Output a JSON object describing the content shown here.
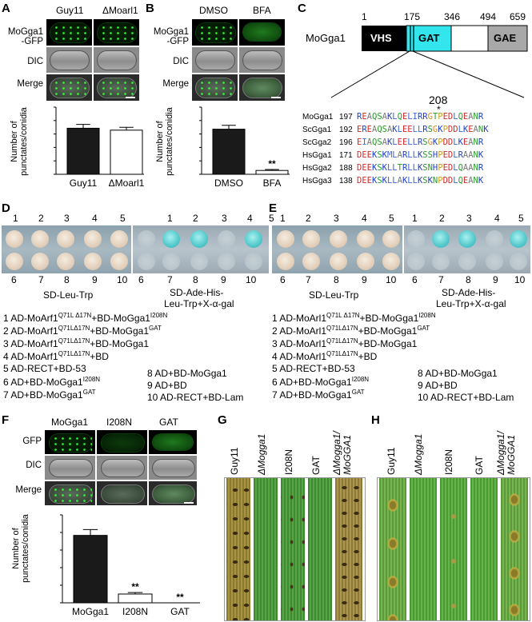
{
  "panels": {
    "A": {
      "label": "A",
      "cols": [
        "Guy11",
        "ΔMoarl1"
      ],
      "rows": [
        "MoGga1\n-GFP",
        "DIC",
        "Merge"
      ],
      "row_label_1": "MoGga1",
      "row_label_1b": "-GFP",
      "row_label_2": "DIC",
      "row_label_3": "Merge",
      "ylabel_1": "Number of",
      "ylabel_2": "punctates/conidia"
    },
    "B": {
      "label": "B",
      "cols": [
        "DMSO",
        "BFA"
      ],
      "row_label_1": "MoGga1",
      "row_label_1b": "-GFP",
      "row_label_2": "DIC",
      "row_label_3": "Merge",
      "ylabel_1": "Number of",
      "ylabel_2": "punctates/conidia",
      "annotation": "**"
    },
    "C": {
      "label": "C",
      "protein": "MoGga1",
      "positions": [
        "1",
        "175",
        "346",
        "494",
        "659"
      ],
      "domains": [
        "VHS",
        "GAT",
        "GAE"
      ],
      "site": "208",
      "star": "*",
      "alignment": [
        {
          "name": "MoGga1",
          "start": "197",
          "seq": "REAQSAKLQELIRRGTPEDLQEANR"
        },
        {
          "name": "ScGga1",
          "start": "192",
          "seq": "EREAQSAKLEELLRSGKPDDLKEANK"
        },
        {
          "name": "ScGga2",
          "start": "196",
          "seq": "EIAQSAKLEELLRSGKPDDLKEANR"
        },
        {
          "name": "HsGga1",
          "start": "171",
          "seq": "DEEKSKMLARLLKSSHPEDLRAANK"
        },
        {
          "name": "HsGga2",
          "start": "188",
          "seq": "DEEKSKLLTRLLKSNHPEDLQAANR"
        },
        {
          "name": "HsGga3",
          "start": "138",
          "seq": "DEEKSKLLAKLLKSKNPDDLQEANK"
        }
      ]
    },
    "D": {
      "label": "D",
      "top_nums": [
        "1",
        "2",
        "3",
        "4",
        "5"
      ],
      "bottom_nums": [
        "6",
        "7",
        "8",
        "9",
        "10"
      ],
      "left_medium": "SD-Leu-Trp",
      "right_medium_1": "SD-Ade-His-",
      "right_medium_2": "Leu-Trp+X-α-gal",
      "legend": {
        "l1a": "1 AD-MoArf1",
        "l1s": "Q71L Δ17N",
        "l1b": "+BD-MoGga1",
        "l1c": "I208N",
        "l2a": "2 AD-MoArf1",
        "l2s": "Q71LΔ17N",
        "l2b": "+BD-MoGga1",
        "l2c": "GAT",
        "l3a": "3 AD-MoArf1",
        "l3s": "Q71LΔ17N",
        "l3b": "+BD-MoGga1",
        "l4a": "4 AD-MoArf1",
        "l4s": "Q71LΔ17N",
        "l4b": "+BD",
        "l5": "5 AD-RECT+BD-53",
        "l6a": "6 AD+BD-MoGga1",
        "l6c": "I208N",
        "l7a": "7 AD+BD-MoGga1",
        "l7c": "GAT",
        "l8": "8 AD+BD-MoGga1",
        "l9": "9 AD+BD",
        "l10": "10 AD-RECT+BD-Lam"
      }
    },
    "E": {
      "label": "E",
      "top_nums": [
        "1",
        "2",
        "3",
        "4",
        "5"
      ],
      "bottom_nums": [
        "6",
        "7",
        "8",
        "9",
        "10"
      ],
      "left_medium": "SD-Leu-Trp",
      "right_medium_1": "SD-Ade-His-",
      "right_medium_2": "Leu-Trp+X-α-gal",
      "legend": {
        "l1a": "1 AD-MoArl1",
        "l1s": "Q71L Δ17N",
        "l1b": "+BD-MoGga1",
        "l1c": "I208N",
        "l2a": "2 AD-MoArl1",
        "l2s": "Q71LΔ17N",
        "l2b": "+BD-MoGga1",
        "l2c": "GAT",
        "l3a": "3 AD-MoArl1",
        "l3s": "Q71LΔ17N",
        "l3b": "+BD-MoGga1",
        "l4a": "4 AD-MoArl1",
        "l4s": "Q71LΔ17N",
        "l4b": "+BD",
        "l5": "5 AD-RECT+BD-53",
        "l6a": "6 AD+BD-MoGga1",
        "l6c": "I208N",
        "l7a": "7 AD+BD-MoGga1",
        "l7c": "GAT",
        "l8": "8 AD+BD-MoGga1",
        "l9": "9 AD+BD",
        "l10": "10 AD-RECT+BD-Lam"
      }
    },
    "F": {
      "label": "F",
      "cols": [
        "MoGga1",
        "I208N",
        "GAT"
      ],
      "row_label_1": "GFP",
      "row_label_2": "DIC",
      "row_label_3": "Merge",
      "ylabel_1": "Number of",
      "ylabel_2": "punctates/conidia",
      "annotation": "**"
    },
    "G": {
      "label": "G",
      "cols": [
        "Guy11",
        "ΔMogga1",
        "I208N",
        "GAT",
        "ΔMogga1/",
        "MoGGA1"
      ]
    },
    "H": {
      "label": "H",
      "cols": [
        "Guy11",
        "ΔMogga1",
        "I208N",
        "GAT",
        "ΔMogga1/",
        "MoGGA1"
      ]
    }
  },
  "chart_data": [
    {
      "type": "bar",
      "panel": "A",
      "categories": [
        "Guy11",
        "ΔMoarl1"
      ],
      "values": [
        24,
        23
      ],
      "errors": [
        2,
        1.5
      ],
      "ylabel": "Number of punctates/conidia",
      "ylim": [
        0,
        35
      ],
      "colors": [
        "#1a1a1a",
        "#ffffff"
      ]
    },
    {
      "type": "bar",
      "panel": "B",
      "categories": [
        "DMSO",
        "BFA"
      ],
      "values": [
        23.5,
        2
      ],
      "errors": [
        2,
        0.5
      ],
      "ylabel": "Number of punctates/conidia",
      "ylim": [
        0,
        35
      ],
      "colors": [
        "#1a1a1a",
        "#ffffff"
      ]
    },
    {
      "type": "bar",
      "panel": "F",
      "categories": [
        "MoGga1",
        "I208N",
        "GAT"
      ],
      "values": [
        23,
        3,
        0
      ],
      "errors": [
        2,
        0.5,
        0
      ],
      "ylabel": "Number of punctates/conidia",
      "ylim": [
        0,
        30
      ],
      "colors": [
        "#1a1a1a",
        "#ffffff",
        "#ffffff"
      ]
    }
  ],
  "colors": {
    "vhs": "#000000",
    "gat": "#33e6ee",
    "gae": "#a8a8a8",
    "bar_dark": "#1a1a1a"
  }
}
